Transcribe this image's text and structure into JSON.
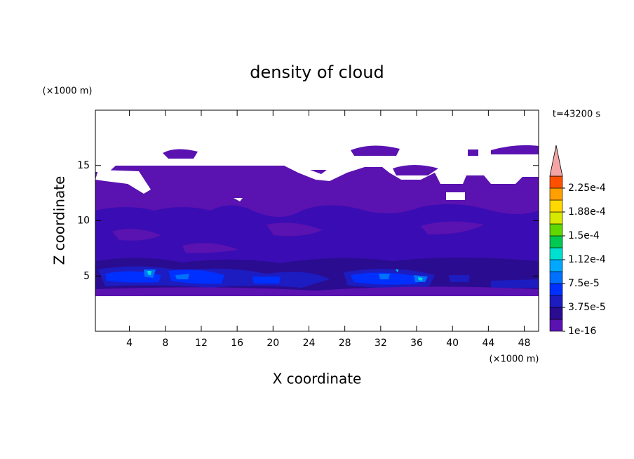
{
  "chart_data": {
    "type": "contour",
    "title": "density of cloud",
    "x_label": "X coordinate",
    "y_label": "Z coordinate",
    "x_unit": "(×1000 m)",
    "y_unit": "(×1000 m)",
    "annotation": "t=43200 s",
    "xlim": [
      0.2,
      49.6
    ],
    "xticks": [
      4,
      8,
      12,
      16,
      20,
      24,
      28,
      32,
      36,
      40,
      44,
      48
    ],
    "ylim": [
      0,
      20
    ],
    "yticks": [
      5,
      10,
      15
    ],
    "colorbar": {
      "lim": [
        1e-16,
        0.00024375
      ],
      "ticks": [
        1e-16,
        {
          "value": 3.75e-05,
          "label": "3.75e-5"
        },
        {
          "value": 7.5e-05,
          "label": "7.5e-5"
        },
        {
          "value": 0.0001125,
          "label": "1.12e-4"
        },
        {
          "value": 0.00015,
          "label": "1.5e-4"
        },
        {
          "value": 0.0001875,
          "label": "1.88e-4"
        },
        {
          "value": 0.000225,
          "label": "2.25e-4"
        }
      ],
      "colors": [
        "#5a12b0",
        "#2a0c90",
        "#1c1cc0",
        "#0030ff",
        "#0070ff",
        "#00a8ff",
        "#00e0d0",
        "#00c850",
        "#60d800",
        "#d8e800",
        "#ffd800",
        "#ffa000",
        "#ff5000"
      ],
      "extend_color": "#f4a4a4"
    }
  }
}
